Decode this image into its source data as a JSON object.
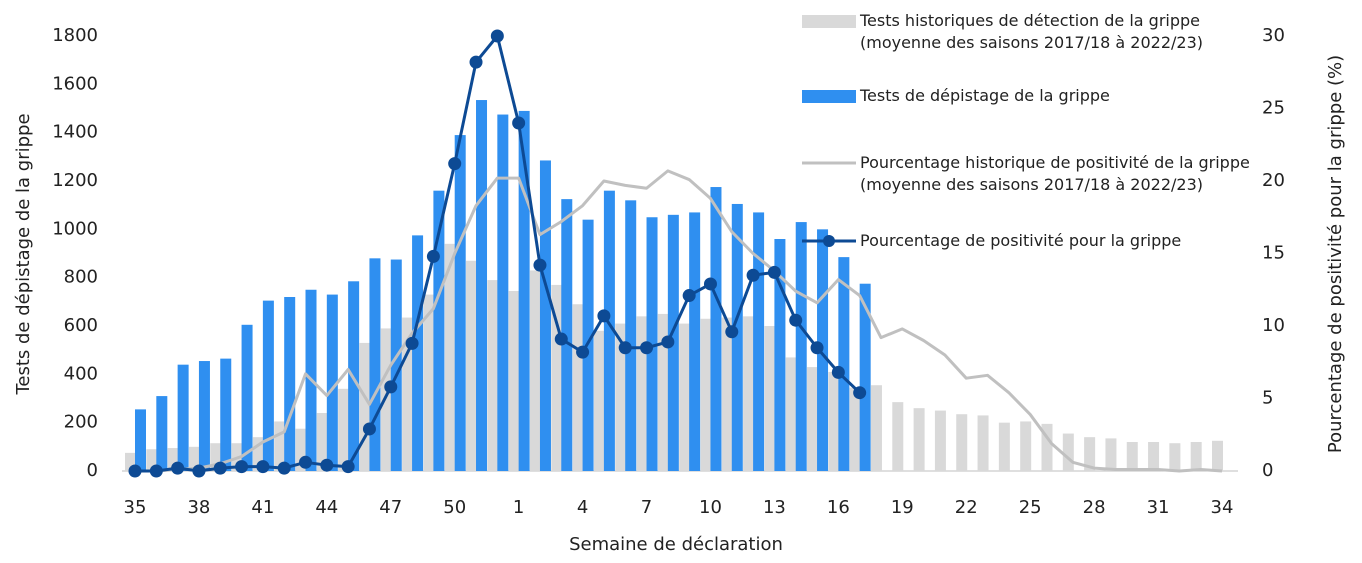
{
  "chart_data": {
    "type": "bar",
    "x_label": "Semaine de déclaration",
    "y_label": "Tests de dépistage de la grippe",
    "y2_label": "Pourcentage de positivité pour la grippe (%)",
    "categories": [
      "35",
      null,
      null,
      "38",
      null,
      null,
      "41",
      null,
      null,
      "44",
      null,
      null,
      "47",
      null,
      null,
      "50",
      null,
      null,
      "1",
      null,
      null,
      "4",
      null,
      null,
      "7",
      null,
      null,
      "10",
      null,
      null,
      "13",
      null,
      null,
      "16",
      null,
      null,
      "19",
      null,
      null,
      "22",
      null,
      null,
      "25",
      null,
      null,
      "28",
      null,
      null,
      "31",
      null,
      null,
      "34"
    ],
    "ylim": [
      0,
      1800
    ],
    "yticks": [
      0,
      200,
      400,
      600,
      800,
      1000,
      1200,
      1400,
      1600,
      1800
    ],
    "y2lim": [
      0,
      30
    ],
    "y2ticks": [
      0,
      5,
      10,
      15,
      20,
      25,
      30
    ],
    "series": [
      {
        "name": "Tests historiques de détection de la grippe (moyenne des saisons 2017/18 à 2022/23)",
        "type": "bar",
        "color": "#d9d9d9",
        "values": [
          75,
          90,
          95,
          100,
          115,
          115,
          140,
          205,
          175,
          240,
          340,
          530,
          590,
          635,
          730,
          940,
          870,
          790,
          745,
          830,
          770,
          690,
          580,
          610,
          640,
          650,
          610,
          630,
          635,
          640,
          600,
          470,
          430,
          410,
          345,
          355,
          285,
          260,
          250,
          235,
          230,
          200,
          205,
          195,
          155,
          140,
          135,
          120,
          120,
          115,
          120,
          125
        ]
      },
      {
        "name": "Tests de dépistage de la grippe",
        "type": "bar",
        "color": "#2f8ff0",
        "values": [
          255,
          310,
          440,
          455,
          465,
          605,
          705,
          720,
          750,
          730,
          785,
          880,
          875,
          975,
          1160,
          1390,
          1535,
          1475,
          1490,
          1285,
          1125,
          1040,
          1160,
          1120,
          1050,
          1060,
          1070,
          1175,
          1105,
          1070,
          960,
          1030,
          1000,
          885,
          775,
          null,
          null,
          null,
          null,
          null,
          null,
          null,
          null,
          null,
          null,
          null,
          null,
          null,
          null,
          null,
          null,
          null
        ]
      },
      {
        "name": "Pourcentage historique de positivité de la grippe (moyenne des saisons 2017/18 à 2022/23)",
        "type": "line",
        "axis": "y2",
        "color": "#c0c0c0",
        "marker": false,
        "values": [
          0,
          0,
          0.1,
          0.2,
          0.5,
          1,
          2,
          2.7,
          6.7,
          5.2,
          7,
          4.6,
          7.3,
          9.5,
          11.2,
          15,
          18.3,
          20.2,
          20.2,
          16.3,
          17.2,
          18.3,
          20,
          19.7,
          19.5,
          20.7,
          20.1,
          18.8,
          16.5,
          15,
          13.8,
          12.4,
          11.6,
          13.2,
          12.1,
          9.2,
          9.8,
          9,
          8,
          6.4,
          6.6,
          5.4,
          3.9,
          1.9,
          0.6,
          0.2,
          0.1,
          0.1,
          0.1,
          0,
          0.1,
          0
        ]
      },
      {
        "name": "Pourcentage de positivité pour la grippe",
        "type": "line",
        "axis": "y2",
        "color": "#0d4a94",
        "marker": true,
        "values": [
          0,
          0,
          0.2,
          0,
          0.2,
          0.3,
          0.3,
          0.2,
          0.6,
          0.4,
          0.3,
          2.9,
          5.8,
          8.8,
          14.8,
          21.2,
          28.2,
          30,
          24,
          14.2,
          9.1,
          8.2,
          10.7,
          8.5,
          8.5,
          8.9,
          12.1,
          12.9,
          9.6,
          13.5,
          13.7,
          10.4,
          8.5,
          6.8,
          5.4,
          null,
          null,
          null,
          null,
          null,
          null,
          null,
          null,
          null,
          null,
          null,
          null,
          null,
          null,
          null,
          null,
          null
        ]
      }
    ]
  }
}
